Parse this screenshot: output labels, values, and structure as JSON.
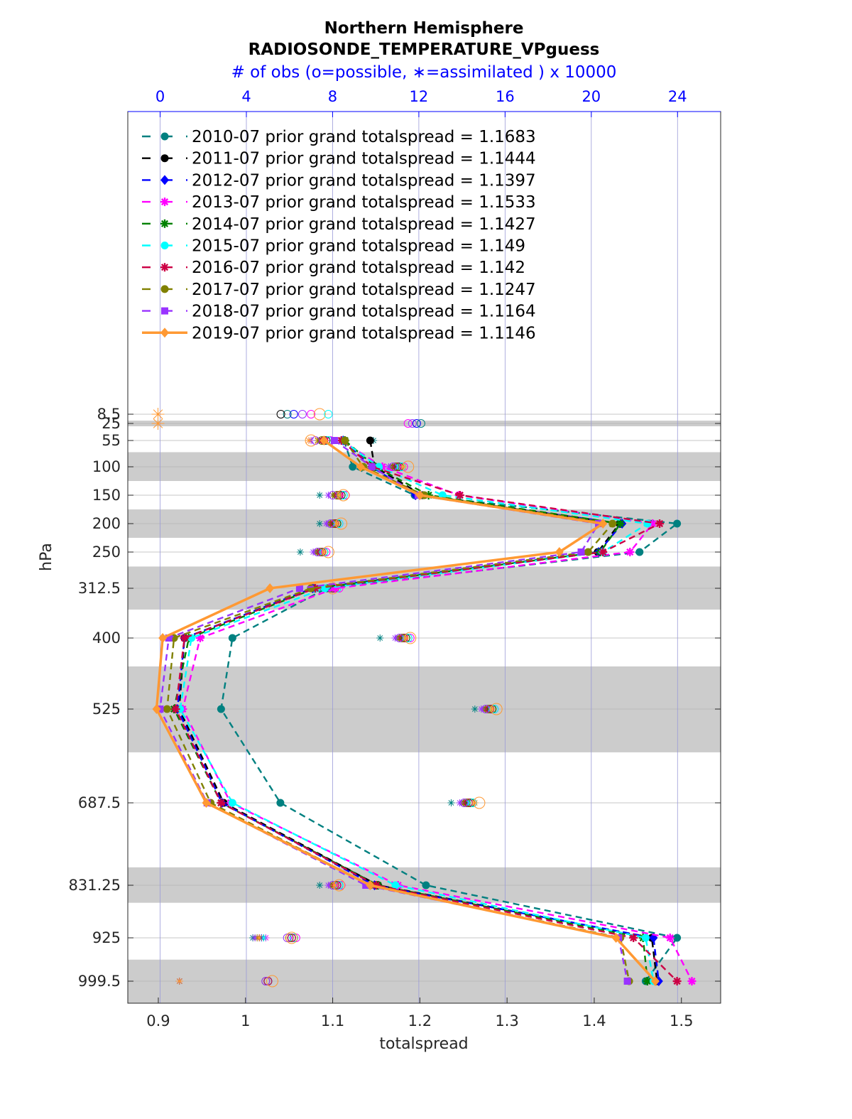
{
  "chart_data": {
    "type": "line",
    "title": "Northern Hemisphere",
    "subtitle": "RADIOSONDE_TEMPERATURE_VPguess",
    "top_axis_label": "# of obs (o=possible, ∗=assimilated ) x 10000",
    "xlabel": "totalspread",
    "ylabel": "hPa",
    "xlim": [
      0.865,
      1.545
    ],
    "x_ticks": [
      "0.9",
      "1",
      "1.1",
      "1.2",
      "1.3",
      "1.4",
      "1.5"
    ],
    "x_tick_values": [
      0.9,
      1.0,
      1.1,
      1.2,
      1.3,
      1.4,
      1.5
    ],
    "top_xlim": [
      -1.5,
      26.0
    ],
    "top_ticks": [
      "0",
      "4",
      "8",
      "12",
      "16",
      "20",
      "24"
    ],
    "top_tick_values": [
      0,
      4,
      8,
      12,
      16,
      20,
      24
    ],
    "levels": [
      "8.5",
      "25",
      "55",
      "100",
      "150",
      "200",
      "250",
      "312.5",
      "400",
      "525",
      "687.5",
      "831.25",
      "925",
      "999.5"
    ],
    "level_values": [
      8.5,
      25,
      55,
      100,
      150,
      200,
      250,
      312.5,
      400,
      525,
      687.5,
      831.25,
      925,
      999.5
    ],
    "shaded_bands_hPa": [
      [
        20,
        30
      ],
      [
        75,
        125
      ],
      [
        175,
        225
      ],
      [
        275,
        350
      ],
      [
        450,
        600
      ],
      [
        800,
        862.5
      ],
      [
        962.5,
        1037.5
      ]
    ],
    "series": [
      {
        "name": "2010-07 prior grand totalspread = 1.1683",
        "color": "#008080",
        "dash": "dash",
        "marker": "circle",
        "levels": [
          55,
          100,
          150,
          200,
          250,
          312.5,
          400,
          525,
          687.5,
          831.25,
          925,
          999.5
        ],
        "values": [
          1.113,
          1.123,
          1.194,
          1.495,
          1.452,
          1.093,
          0.985,
          0.972,
          1.04,
          1.207,
          1.495,
          1.459
        ],
        "obs_possible": [
          7.8,
          11.2,
          8.5,
          8.2,
          7.6,
          8.2,
          11.5,
          15.5,
          14.5,
          8.3,
          6.2,
          5.0
        ],
        "obs_assimilated": [
          9.9,
          9.5,
          7.4,
          7.4,
          6.5,
          7.5,
          10.2,
          14.6,
          13.5,
          7.4,
          4.3,
          0.9
        ]
      },
      {
        "name": "2011-07 prior grand totalspread = 1.1444",
        "color": "#000000",
        "dash": "dash",
        "marker": "circle",
        "levels": [
          55,
          100,
          150,
          200,
          250,
          312.5,
          400,
          525,
          687.5,
          831.25,
          925,
          999.5
        ],
        "values": [
          1.143,
          1.148,
          1.203,
          1.429,
          1.404,
          1.078,
          0.93,
          0.924,
          0.975,
          1.152,
          1.466,
          1.472
        ],
        "obs_possible": [
          7.6,
          11.0,
          8.3,
          8.1,
          7.5,
          8.0,
          11.3,
          15.3,
          14.3,
          8.2,
          6.1,
          5.0
        ],
        "obs_assimilated": [
          7.4,
          10.8,
          8.1,
          7.9,
          7.3,
          7.8,
          11.1,
          15.1,
          14.1,
          8.0,
          4.6,
          0.9
        ]
      },
      {
        "name": "2012-07 prior grand totalspread = 1.1397",
        "color": "#0000ff",
        "dash": "dash",
        "marker": "diamond",
        "levels": [
          55,
          100,
          150,
          200,
          250,
          312.5,
          400,
          525,
          687.5,
          831.25,
          925,
          999.5
        ],
        "values": [
          1.112,
          1.145,
          1.195,
          1.432,
          1.405,
          1.077,
          0.93,
          0.922,
          0.973,
          1.148,
          1.468,
          1.474
        ],
        "obs_possible": [
          7.7,
          11.1,
          8.4,
          8.2,
          7.5,
          8.1,
          11.4,
          15.4,
          14.4,
          8.2,
          6.1,
          5.0
        ],
        "obs_assimilated": [
          7.5,
          10.9,
          8.2,
          8.0,
          7.4,
          7.9,
          11.2,
          15.2,
          14.2,
          8.1,
          4.7,
          0.9
        ]
      },
      {
        "name": "2013-07 prior grand totalspread = 1.1533",
        "color": "#ff00ff",
        "dash": "dash",
        "marker": "star",
        "levels": [
          55,
          100,
          150,
          200,
          250,
          312.5,
          400,
          525,
          687.5,
          831.25,
          925,
          999.5
        ],
        "values": [
          1.11,
          1.157,
          1.245,
          1.467,
          1.441,
          1.103,
          0.948,
          0.928,
          0.983,
          1.175,
          1.487,
          1.512
        ],
        "obs_possible": [
          7.9,
          11.3,
          8.6,
          8.3,
          7.7,
          8.3,
          11.6,
          15.5,
          14.5,
          8.4,
          6.3,
          5.0
        ],
        "obs_assimilated": [
          7.7,
          11.1,
          8.4,
          8.1,
          7.5,
          8.1,
          11.4,
          15.3,
          14.3,
          8.2,
          4.9,
          0.9
        ]
      },
      {
        "name": "2014-07 prior grand totalspread = 1.1427",
        "color": "#008000",
        "dash": "dash",
        "marker": "star",
        "levels": [
          55,
          100,
          150,
          200,
          250,
          312.5,
          400,
          525,
          687.5,
          831.25,
          925,
          999.5
        ],
        "values": [
          1.114,
          1.149,
          1.21,
          1.43,
          1.407,
          1.08,
          0.935,
          0.918,
          0.972,
          1.152,
          1.456,
          1.461
        ],
        "obs_possible": [
          7.7,
          11.1,
          8.4,
          8.2,
          7.6,
          8.1,
          11.4,
          15.4,
          14.4,
          8.3,
          6.2,
          5.0
        ],
        "obs_assimilated": [
          7.5,
          10.9,
          8.2,
          8.0,
          7.4,
          7.9,
          11.2,
          15.2,
          14.2,
          8.1,
          4.8,
          0.9
        ]
      },
      {
        "name": "2015-07 prior grand totalspread = 1.149",
        "color": "#00ffff",
        "dash": "dash",
        "marker": "circle",
        "levels": [
          55,
          100,
          150,
          200,
          250,
          312.5,
          400,
          525,
          687.5,
          831.25,
          925,
          999.5
        ],
        "values": [
          1.111,
          1.153,
          1.226,
          1.461,
          1.41,
          1.091,
          0.938,
          0.925,
          0.985,
          1.172,
          1.459,
          1.468
        ],
        "obs_possible": [
          7.8,
          11.2,
          8.5,
          8.3,
          7.6,
          8.2,
          11.5,
          15.5,
          14.5,
          8.3,
          6.2,
          5.0
        ],
        "obs_assimilated": [
          7.6,
          11.0,
          8.3,
          8.1,
          7.4,
          8.0,
          11.3,
          15.3,
          14.3,
          8.1,
          4.8,
          0.9
        ]
      },
      {
        "name": "2016-07 prior grand totalspread = 1.142",
        "color": "#cc0044",
        "dash": "dash",
        "marker": "star",
        "levels": [
          55,
          100,
          150,
          200,
          250,
          312.5,
          400,
          525,
          687.5,
          831.25,
          925,
          999.5
        ],
        "values": [
          1.11,
          1.145,
          1.246,
          1.475,
          1.41,
          1.08,
          0.93,
          0.92,
          0.972,
          1.15,
          1.445,
          1.495
        ],
        "obs_possible": [
          7.6,
          11.0,
          8.3,
          8.1,
          7.5,
          8.0,
          11.3,
          15.3,
          14.3,
          8.2,
          6.1,
          5.0
        ],
        "obs_assimilated": [
          7.4,
          10.8,
          8.1,
          7.9,
          7.3,
          7.8,
          11.1,
          15.1,
          14.1,
          8.0,
          4.6,
          0.9
        ]
      },
      {
        "name": "2017-07 prior grand totalspread = 1.1247",
        "color": "#808000",
        "dash": "dash",
        "marker": "circle",
        "levels": [
          55,
          100,
          150,
          200,
          250,
          312.5,
          400,
          525,
          687.5,
          831.25,
          925,
          999.5
        ],
        "values": [
          1.114,
          1.135,
          1.205,
          1.421,
          1.393,
          1.075,
          0.918,
          0.91,
          0.96,
          1.143,
          1.43,
          1.44
        ],
        "obs_possible": [
          7.5,
          10.9,
          8.2,
          8.0,
          7.4,
          7.9,
          11.2,
          15.2,
          14.2,
          8.1,
          6.0,
          4.9
        ],
        "obs_assimilated": [
          7.3,
          10.7,
          8.0,
          7.8,
          7.2,
          7.7,
          11.0,
          15.0,
          14.0,
          7.9,
          4.5,
          0.9
        ]
      },
      {
        "name": "2018-07 prior grand totalspread = 1.1164",
        "color": "#9933ff",
        "dash": "dash",
        "marker": "square",
        "levels": [
          55,
          100,
          150,
          200,
          250,
          312.5,
          400,
          525,
          687.5,
          831.25,
          925,
          999.5
        ],
        "values": [
          1.102,
          1.145,
          1.198,
          1.405,
          1.385,
          1.062,
          0.912,
          0.902,
          0.956,
          1.138,
          1.428,
          1.438
        ],
        "obs_possible": [
          7.2,
          10.8,
          8.0,
          7.9,
          7.3,
          7.8,
          11.1,
          15.1,
          14.1,
          8.0,
          5.9,
          4.9
        ],
        "obs_assimilated": [
          7.0,
          10.6,
          7.8,
          7.7,
          7.1,
          7.6,
          10.9,
          14.9,
          13.9,
          7.8,
          4.4,
          0.9
        ]
      },
      {
        "name": "2019-07 prior grand totalspread = 1.1146",
        "color": "#ff9933",
        "dash": "solid",
        "marker": "diamond",
        "levels": [
          55,
          100,
          150,
          200,
          250,
          312.5,
          400,
          525,
          687.5,
          831.25,
          925,
          999.5
        ],
        "values": [
          1.09,
          1.132,
          1.2,
          1.41,
          1.36,
          1.028,
          0.905,
          0.898,
          0.955,
          1.143,
          1.425,
          1.47
        ],
        "obs_possible": [
          7.0,
          11.5,
          8.5,
          8.4,
          7.8,
          8.0,
          11.6,
          15.6,
          14.8,
          8.3,
          6.1,
          5.2
        ],
        "obs_assimilated": [
          6.9,
          11.3,
          8.3,
          8.2,
          7.6,
          7.8,
          11.4,
          15.4,
          14.6,
          8.1,
          4.6,
          0.9
        ]
      }
    ],
    "extra_obs": [
      {
        "level": 8.5,
        "possible": [
          7.0,
          6.6,
          6.2,
          5.9,
          5.6,
          7.4,
          7.8
        ],
        "assimilated": [
          -0.1
        ]
      },
      {
        "level": 25,
        "possible": [
          11.5,
          11.7,
          11.9,
          12.1
        ],
        "assimilated": [
          -0.1
        ]
      }
    ]
  }
}
